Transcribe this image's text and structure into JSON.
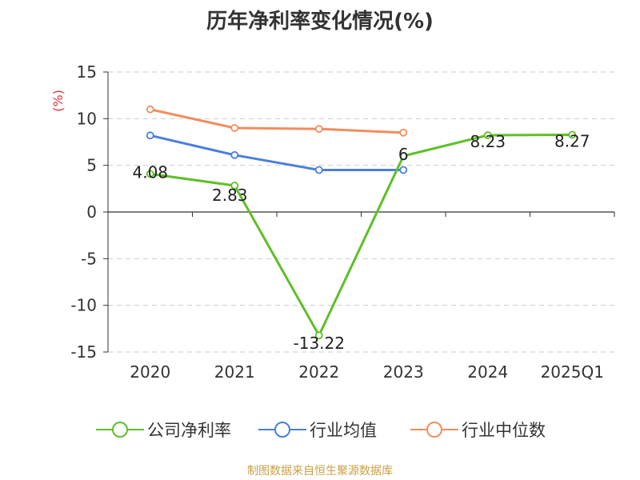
{
  "title": "历年净利率变化情况(%)",
  "source": "制图数据来自恒生聚源数据库",
  "chart_data": {
    "type": "line",
    "title": "历年净利率变化情况(%)",
    "ylabel": "(%)",
    "ylim": [
      -15,
      15
    ],
    "yticks": [
      15,
      10,
      5,
      0,
      -5,
      -10,
      -15
    ],
    "ytick_labels": [
      "15",
      "10",
      "5",
      "0",
      "-5",
      "-10",
      "-15"
    ],
    "grid": true,
    "legend_position": "bottom",
    "categories": [
      "2020",
      "2021",
      "2022",
      "2023",
      "2024",
      "2025Q1"
    ],
    "series": [
      {
        "name": "公司净利率",
        "color": "#5fbf26",
        "values": [
          4.08,
          2.83,
          -13.22,
          6,
          8.23,
          8.27
        ],
        "labels": [
          "4.08",
          "2.83",
          "-13.22",
          "6",
          "8.23",
          "8.27"
        ]
      },
      {
        "name": "行业均值",
        "color": "#4a7fdc",
        "values": [
          8.2,
          6.1,
          4.5,
          4.5,
          null,
          null
        ]
      },
      {
        "name": "行业中位数",
        "color": "#f28c5c",
        "values": [
          11.0,
          9.0,
          8.9,
          8.5,
          null,
          null
        ]
      }
    ]
  }
}
